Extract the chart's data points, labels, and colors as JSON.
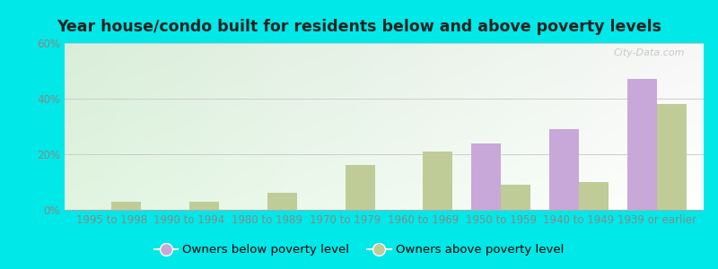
{
  "title": "Year house/condo built for residents below and above poverty levels",
  "categories": [
    "1995 to 1998",
    "1990 to 1994",
    "1980 to 1989",
    "1970 to 1979",
    "1960 to 1969",
    "1950 to 1959",
    "1940 to 1949",
    "1939 or earlier"
  ],
  "below_poverty": [
    0,
    0,
    0,
    0,
    0,
    24,
    29,
    47
  ],
  "above_poverty": [
    3,
    3,
    6,
    16,
    21,
    9,
    10,
    38
  ],
  "below_color": "#c8a8d8",
  "above_color": "#c0cc98",
  "ylim": [
    0,
    60
  ],
  "yticks": [
    0,
    20,
    40,
    60
  ],
  "ytick_labels": [
    "0%",
    "20%",
    "40%",
    "60%"
  ],
  "legend_below": "Owners below poverty level",
  "legend_above": "Owners above poverty level",
  "background_outer": "#00e8e8",
  "watermark": "City-Data.com",
  "title_fontsize": 12.5,
  "tick_fontsize": 8.5,
  "legend_fontsize": 9.5
}
